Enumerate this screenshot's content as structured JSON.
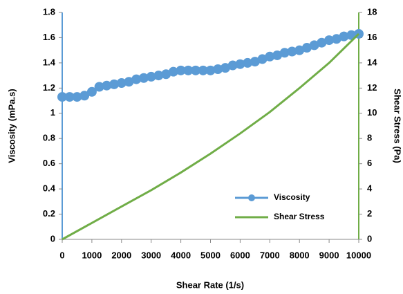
{
  "chart_data": {
    "type": "line",
    "x_label": "Shear Rate (1/s)",
    "y_label": "Viscosity (mPa.s)",
    "y2_label": "Shear Stress (Pa)",
    "xlim": [
      0,
      10000
    ],
    "xticks": [
      0,
      1000,
      2000,
      3000,
      4000,
      5000,
      6000,
      7000,
      8000,
      9000,
      10000
    ],
    "ylim": [
      0,
      1.8
    ],
    "yticks": [
      0,
      0.2,
      0.4,
      0.6,
      0.8,
      1,
      1.2,
      1.4,
      1.6,
      1.8
    ],
    "y2lim": [
      0,
      18
    ],
    "y2ticks": [
      0,
      2,
      4,
      6,
      8,
      10,
      12,
      14,
      16,
      18
    ],
    "legend": "lower right",
    "grid": false,
    "series": [
      {
        "name": "Viscosity",
        "color": "#5b9bd5",
        "markers": true,
        "x": [
          0,
          250,
          500,
          750,
          1000,
          1250,
          1500,
          1750,
          2000,
          2250,
          2500,
          2750,
          3000,
          3250,
          3500,
          3750,
          4000,
          4250,
          4500,
          4750,
          5000,
          5250,
          5500,
          5750,
          6000,
          6250,
          6500,
          6750,
          7000,
          7250,
          7500,
          7750,
          8000,
          8250,
          8500,
          8750,
          9000,
          9250,
          9500,
          9750,
          10000
        ],
        "values": [
          1.13,
          1.13,
          1.13,
          1.14,
          1.17,
          1.21,
          1.22,
          1.23,
          1.24,
          1.25,
          1.27,
          1.28,
          1.29,
          1.3,
          1.31,
          1.33,
          1.34,
          1.34,
          1.34,
          1.34,
          1.34,
          1.35,
          1.36,
          1.38,
          1.39,
          1.4,
          1.41,
          1.43,
          1.45,
          1.46,
          1.48,
          1.49,
          1.5,
          1.52,
          1.54,
          1.56,
          1.58,
          1.59,
          1.61,
          1.62,
          1.63
        ]
      },
      {
        "name": "Shear Stress",
        "color": "#70ad47",
        "markers": false,
        "axis": "y2",
        "x": [
          0,
          1000,
          2000,
          3000,
          4000,
          5000,
          6000,
          7000,
          8000,
          9000,
          10000
        ],
        "values": [
          0,
          1.3,
          2.6,
          3.9,
          5.3,
          6.8,
          8.4,
          10.1,
          12.0,
          14.0,
          16.3
        ]
      }
    ]
  }
}
